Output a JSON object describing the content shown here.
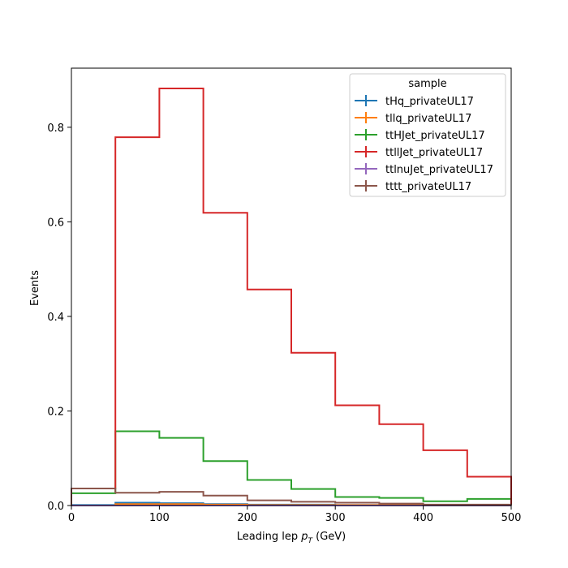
{
  "chart_data": {
    "type": "step-histogram",
    "xlabel_main": "Leading lep ",
    "xlabel_sym": "p",
    "xlabel_sub": "T",
    "xlabel_unit": " (GeV)",
    "ylabel": "Events",
    "xlim": [
      0,
      500
    ],
    "ylim": [
      0,
      0.925
    ],
    "xticks": [
      0,
      100,
      200,
      300,
      400,
      500
    ],
    "xtick_labels": [
      "0",
      "100",
      "200",
      "300",
      "400",
      "500"
    ],
    "yticks": [
      0.0,
      0.2,
      0.4,
      0.6,
      0.8
    ],
    "ytick_labels": [
      "0.0",
      "0.2",
      "0.4",
      "0.6",
      "0.8"
    ],
    "bin_edges": [
      0,
      50,
      100,
      150,
      200,
      250,
      300,
      350,
      400,
      450,
      500
    ],
    "legend": {
      "title": "sample",
      "placement": "top-right"
    },
    "series": [
      {
        "name": "tHq_privateUL17",
        "color": "#1f77b4",
        "values": [
          0.001,
          0.006,
          0.005,
          0.003,
          0.002,
          0.002,
          0.001,
          0.001,
          0.001,
          0.001
        ]
      },
      {
        "name": "tllq_privateUL17",
        "color": "#ff7f0e",
        "values": [
          0.0,
          0.003,
          0.003,
          0.002,
          0.001,
          0.001,
          0.001,
          0.001,
          0.0,
          0.0
        ]
      },
      {
        "name": "ttHJet_privateUL17",
        "color": "#2ca02c",
        "values": [
          0.026,
          0.157,
          0.143,
          0.094,
          0.054,
          0.035,
          0.018,
          0.016,
          0.009,
          0.014
        ]
      },
      {
        "name": "ttllJet_privateUL17",
        "color": "#d62728",
        "values": [
          0.036,
          0.779,
          0.882,
          0.619,
          0.457,
          0.323,
          0.212,
          0.172,
          0.117,
          0.061
        ]
      },
      {
        "name": "ttlnuJet_privateUL17",
        "color": "#9467bd",
        "values": [
          0.0,
          0.0,
          0.0,
          0.0,
          0.0,
          0.0,
          0.0,
          0.0,
          0.0,
          0.0
        ]
      },
      {
        "name": "tttt_privateUL17",
        "color": "#8c564b",
        "values": [
          0.036,
          0.027,
          0.029,
          0.021,
          0.011,
          0.008,
          0.006,
          0.004,
          0.002,
          0.002
        ]
      }
    ]
  }
}
